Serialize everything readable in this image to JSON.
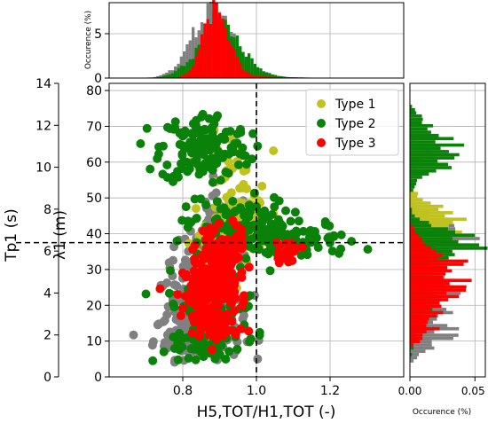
{
  "chart_data": [
    {
      "panel": "main-scatter",
      "type": "scatter",
      "xlabel": "H5,TOT/H1,TOT (-)",
      "ylabel": "λ1 (m)",
      "ylabel_secondary": "Tp1 (s)",
      "xlim": [
        0.6,
        1.4
      ],
      "ylim": [
        0,
        82
      ],
      "secondary_ylim": [
        0,
        14
      ],
      "x_ticks": [
        "0.8",
        "1.0",
        "1.2"
      ],
      "y_ticks": [
        "0",
        "10",
        "20",
        "30",
        "40",
        "50",
        "60",
        "70",
        "80"
      ],
      "secondary_ticks": [
        "0",
        "2",
        "4",
        "6",
        "8",
        "10",
        "12",
        "14"
      ],
      "grid": true,
      "legend_position": "top-right",
      "reference_lines": {
        "vertical_x": 1.0,
        "horizontal_y": 37.5
      },
      "series": [
        {
          "name": "",
          "color": "#808080",
          "clusters": [
            {
              "cx": 0.86,
              "cy": 20,
              "sx": 0.05,
              "sy": 5,
              "n": 170
            },
            {
              "cx": 0.84,
              "cy": 11,
              "sx": 0.06,
              "sy": 3,
              "n": 110
            },
            {
              "cx": 0.86,
              "cy": 33,
              "sx": 0.06,
              "sy": 4,
              "n": 70
            },
            {
              "cx": 0.9,
              "cy": 43,
              "sx": 0.04,
              "sy": 4,
              "n": 50
            }
          ]
        },
        {
          "name": "Type 1",
          "color": "#c2c21f",
          "clusters": [
            {
              "cx": 0.95,
              "cy": 43,
              "sx": 0.04,
              "sy": 4,
              "n": 110
            },
            {
              "cx": 0.92,
              "cy": 60,
              "sx": 0.04,
              "sy": 4,
              "n": 30
            },
            {
              "cx": 0.88,
              "cy": 30,
              "sx": 0.04,
              "sy": 5,
              "n": 40
            }
          ]
        },
        {
          "name": "Type 2",
          "color": "#0a820a",
          "clusters": [
            {
              "cx": 0.86,
              "cy": 64,
              "sx": 0.06,
              "sy": 5,
              "n": 150
            },
            {
              "cx": 0.95,
              "cy": 42,
              "sx": 0.07,
              "sy": 4,
              "n": 120
            },
            {
              "cx": 1.12,
              "cy": 38,
              "sx": 0.08,
              "sy": 2.5,
              "n": 70
            },
            {
              "cx": 0.88,
              "cy": 20,
              "sx": 0.06,
              "sy": 8,
              "n": 110
            },
            {
              "cx": 0.86,
              "cy": 8,
              "sx": 0.05,
              "sy": 2,
              "n": 40
            }
          ]
        },
        {
          "name": "Type 3",
          "color": "#ff0000",
          "clusters": [
            {
              "cx": 0.87,
              "cy": 24,
              "sx": 0.035,
              "sy": 4,
              "n": 150
            },
            {
              "cx": 0.91,
              "cy": 32,
              "sx": 0.03,
              "sy": 4,
              "n": 90
            },
            {
              "cx": 0.89,
              "cy": 14,
              "sx": 0.03,
              "sy": 3,
              "n": 45
            },
            {
              "cx": 0.9,
              "cy": 37,
              "sx": 0.03,
              "sy": 1.5,
              "n": 30
            },
            {
              "cx": 1.08,
              "cy": 35,
              "sx": 0.02,
              "sy": 1.5,
              "n": 20
            }
          ]
        }
      ]
    },
    {
      "panel": "top-histogram",
      "type": "bar",
      "ylabel": "Occurence (%)",
      "ylim": [
        0,
        8.5
      ],
      "y_ticks": [
        "0",
        "5"
      ],
      "series": [
        {
          "name": "",
          "color": "#808080",
          "mu": 0.88,
          "sigma": 0.055,
          "peak": 7.5
        },
        {
          "name": "Type 1",
          "color": "#c2c21f",
          "mu": 0.9,
          "sigma": 0.05,
          "peak": 3.6
        },
        {
          "name": "Type 2",
          "color": "#0a820a",
          "mu": 0.9,
          "sigma": 0.06,
          "peak": 5.5
        },
        {
          "name": "Type 3",
          "color": "#ff0000",
          "mu": 0.89,
          "sigma": 0.035,
          "peak": 7.8
        }
      ]
    },
    {
      "panel": "right-histogram",
      "type": "bar",
      "xlabel": "Occurence (%)",
      "xlim": [
        0,
        0.058
      ],
      "x_ticks": [
        "0.00",
        "0.05"
      ],
      "series": [
        {
          "name": "",
          "color": "#808080",
          "peaks": [
            [
              24,
              6,
              0.032
            ],
            [
              12,
              4,
              0.028
            ],
            [
              40,
              4,
              0.045
            ]
          ]
        },
        {
          "name": "Type 1",
          "color": "#c2c21f",
          "peaks": [
            [
              43,
              4,
              0.042
            ],
            [
              62,
              3,
              0.015
            ]
          ]
        },
        {
          "name": "Type 2",
          "color": "#0a820a",
          "peaks": [
            [
              38,
              3,
              0.05
            ],
            [
              62,
              4,
              0.04
            ],
            [
              25,
              8,
              0.022
            ],
            [
              70,
              3,
              0.012
            ]
          ]
        },
        {
          "name": "Type 3",
          "color": "#ff0000",
          "peaks": [
            [
              24,
              5,
              0.035
            ],
            [
              33,
              4,
              0.03
            ],
            [
              14,
              3,
              0.015
            ]
          ]
        }
      ]
    }
  ],
  "top_hist_ylabel": "Occurence (%)",
  "right_hist_xlabel": "Occurence (%)",
  "main_xlabel": "H5,TOT/H1,TOT (-)",
  "main_ylabel": "λ1 (m)",
  "secondary_ylabel": "Tp1 (s)",
  "legend": [
    "Type 1",
    "Type 2",
    "Type 3"
  ]
}
